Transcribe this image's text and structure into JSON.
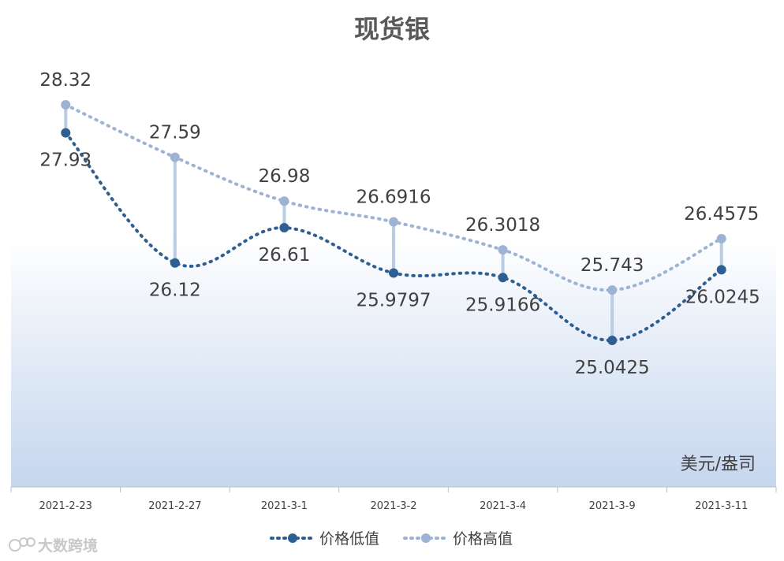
{
  "title": "现货银",
  "unit_label": "美元/盎司",
  "watermark": "大数跨境",
  "colors": {
    "low": "#2e5f93",
    "high": "#9db3d3",
    "drop": "#b9cce4",
    "bg_top": "#ffffff",
    "bg_bottom": "#c5d6ee"
  },
  "chart_data": {
    "type": "line",
    "categories": [
      "2021-2-23",
      "2021-2-27",
      "2021-3-1",
      "2021-3-2",
      "2021-3-4",
      "2021-3-9",
      "2021-3-11"
    ],
    "series": [
      {
        "name": "价格低值",
        "values": [
          27.93,
          26.12,
          26.61,
          25.9797,
          25.9166,
          25.0425,
          26.0245
        ],
        "labels": [
          "27.93",
          "26.12",
          "26.61",
          "25.9797",
          "25.9166",
          "25.0425",
          "26.0245"
        ]
      },
      {
        "name": "价格高值",
        "values": [
          28.32,
          27.59,
          26.98,
          26.6916,
          26.3018,
          25.743,
          26.4575
        ],
        "labels": [
          "28.32",
          "27.59",
          "26.98",
          "26.6916",
          "26.3018",
          "25.743",
          "26.4575"
        ]
      }
    ],
    "ylabel": "美元/盎司",
    "legend": "bottom",
    "smooth": true,
    "high_low_lines": true,
    "grid": false
  }
}
